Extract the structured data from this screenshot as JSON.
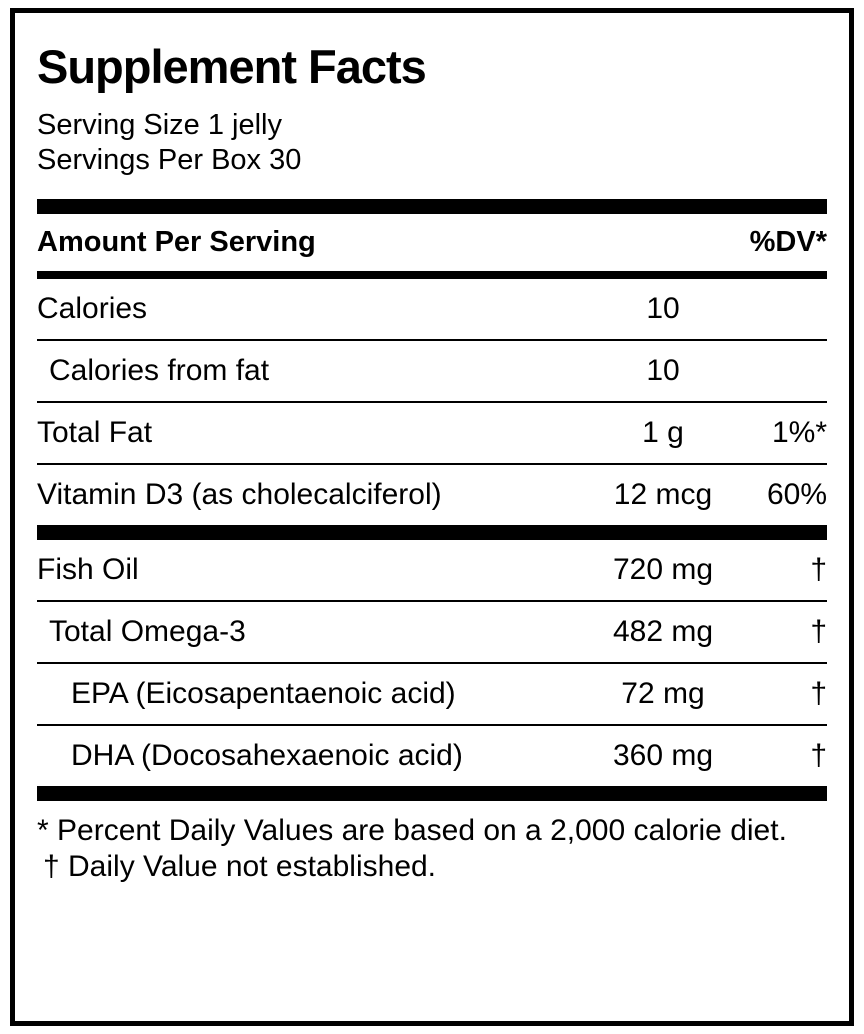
{
  "label": {
    "title": "Supplement Facts",
    "serving_size": "Serving Size 1 jelly",
    "servings_per_box": "Servings Per Box 30",
    "columns": {
      "amount_header": "Amount Per Serving",
      "dv_header": "%DV*"
    },
    "rows": [
      {
        "name": "Calories",
        "amount": "10",
        "dv": "",
        "indent": 0,
        "group": 1
      },
      {
        "name": "Calories from fat",
        "amount": "10",
        "dv": "",
        "indent": 1,
        "group": 1
      },
      {
        "name": "Total Fat",
        "amount": "1 g",
        "dv": "1%*",
        "indent": 0,
        "group": 1
      },
      {
        "name": "Vitamin D3 (as cholecalciferol)",
        "amount": "12 mcg",
        "dv": "60%",
        "indent": 0,
        "group": 1
      },
      {
        "name": "Fish Oil",
        "amount": "720 mg",
        "dv": "†",
        "indent": 0,
        "group": 2
      },
      {
        "name": "Total Omega-3",
        "amount": "482 mg",
        "dv": "†",
        "indent": 1,
        "group": 2
      },
      {
        "name": "EPA (Eicosapentaenoic acid)",
        "amount": "72 mg",
        "dv": "†",
        "indent": 2,
        "group": 2
      },
      {
        "name": "DHA (Docosahexaenoic acid)",
        "amount": "360 mg",
        "dv": "†",
        "indent": 2,
        "group": 2
      }
    ],
    "footnotes": [
      "* Percent Daily Values are based on a 2,000 calorie diet.",
      "† Daily Value not established."
    ],
    "colors": {
      "ink": "#000000",
      "background": "#ffffff"
    }
  }
}
